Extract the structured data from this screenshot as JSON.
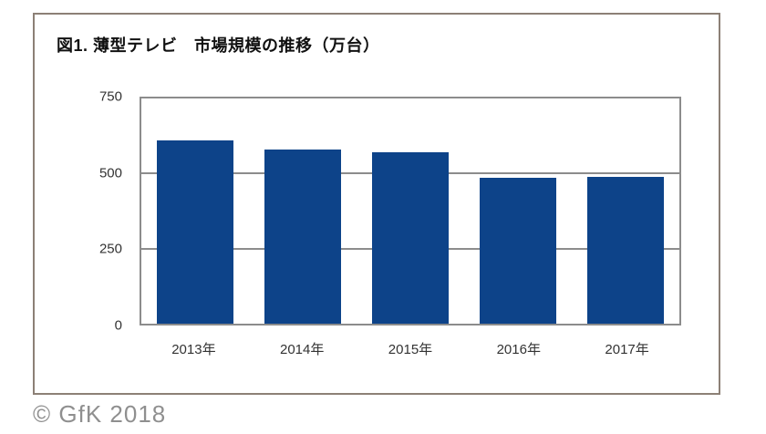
{
  "chart_data": {
    "type": "bar",
    "title": "図1. 薄型テレビ　市場規模の推移（万台）",
    "categories": [
      "2013年",
      "2014年",
      "2015年",
      "2016年",
      "2017年"
    ],
    "values": [
      610,
      580,
      570,
      485,
      490
    ],
    "xlabel": "",
    "ylabel": "",
    "ylim": [
      0,
      750
    ],
    "yticks": [
      0,
      250,
      500,
      750
    ],
    "grid": true,
    "legend": "none",
    "bar_color": "#0d4389",
    "gridline_color": "#8c8c8c",
    "axis_text_color": "#333333"
  },
  "footer": {
    "copyright": "© GfK 2018"
  },
  "colors": {
    "frame_border": "#8c8076",
    "background": "#ffffff",
    "copyright_text": "#8f8f8f"
  }
}
